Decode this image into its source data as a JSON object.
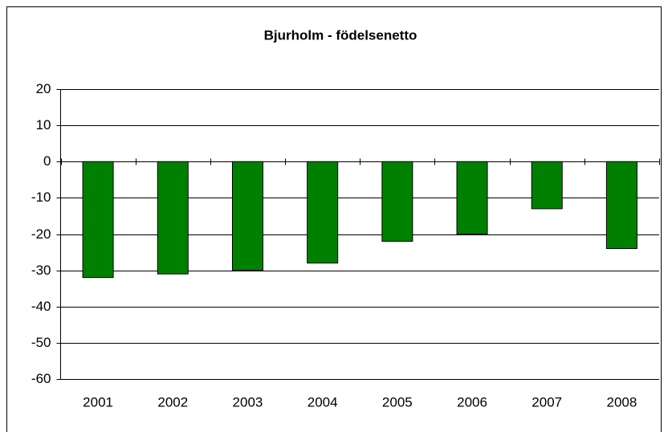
{
  "chart_data": {
    "type": "bar",
    "title": "Bjurholm - födelsenetto",
    "categories": [
      "2001",
      "2002",
      "2003",
      "2004",
      "2005",
      "2006",
      "2007",
      "2008"
    ],
    "values": [
      -32,
      -31,
      -30,
      -28,
      -22,
      -20,
      -13,
      -24
    ],
    "color": "#008000",
    "ylim": [
      -60,
      20
    ],
    "yticks": [
      -60,
      -50,
      -40,
      -30,
      -20,
      -10,
      0,
      10,
      20
    ],
    "grid": true
  }
}
